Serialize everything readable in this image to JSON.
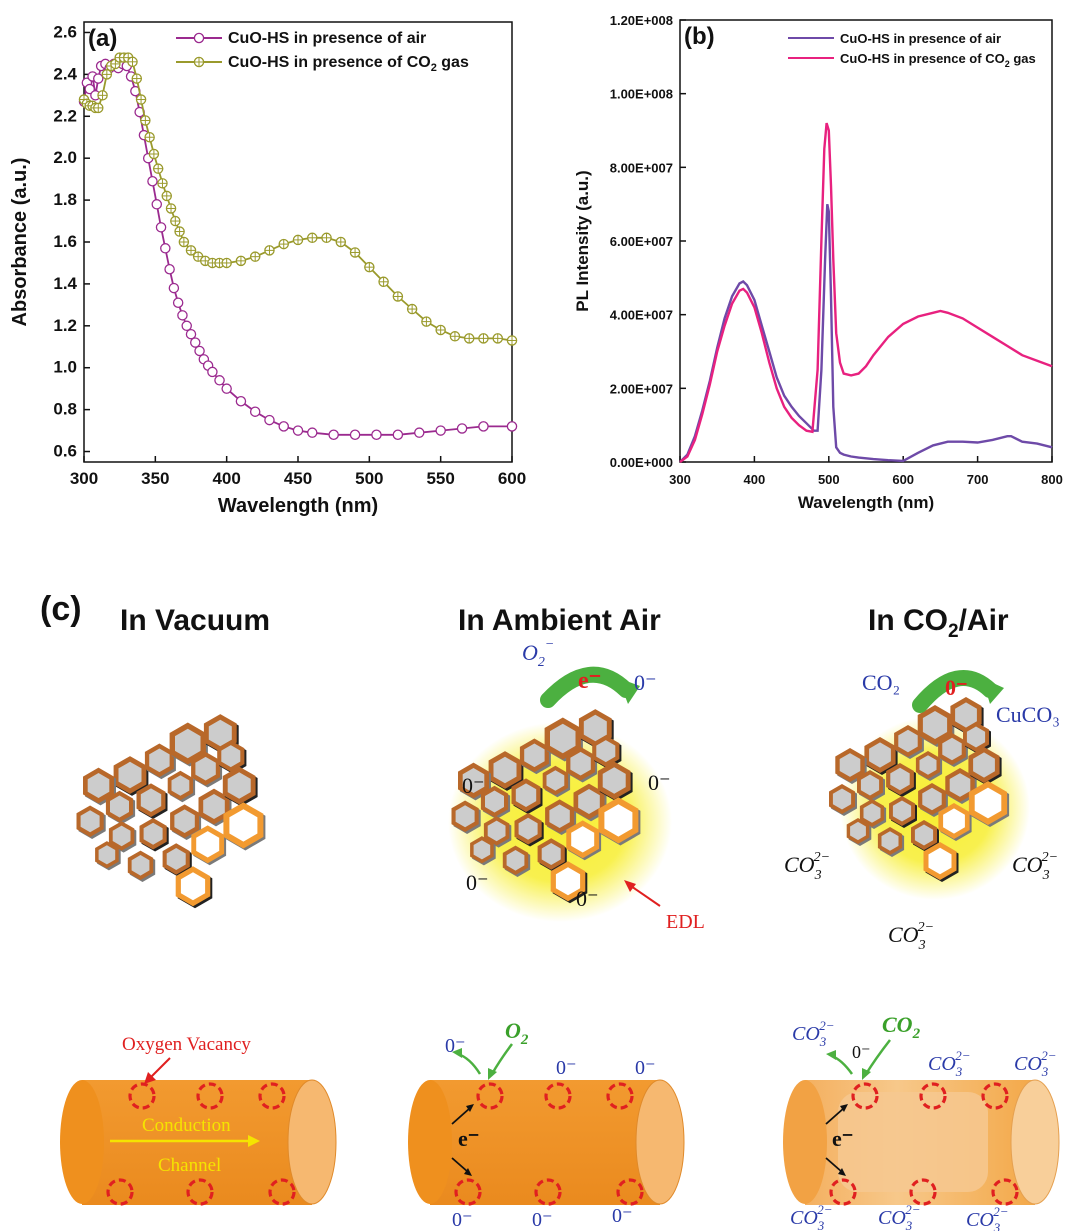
{
  "colors": {
    "purple": "#9b2a8f",
    "olive": "#9a9a2c",
    "violet": "#6e4aa8",
    "pink": "#e8217f",
    "orange": "#f0932a",
    "orange_dark": "#b8682a",
    "red": "#e02020",
    "blue": "#2a3aa8",
    "green": "#3aa02a",
    "yellow": "#f5e400"
  },
  "chart_data": [
    {
      "panel_label": "(a)",
      "type": "line",
      "xlabel": "Wavelength (nm)",
      "ylabel": "Absorbance (a.u.)",
      "xlim": [
        300,
        600
      ],
      "ylim": [
        0.55,
        2.65
      ],
      "x_ticks": [
        "300",
        "350",
        "400",
        "450",
        "500",
        "550",
        "600"
      ],
      "y_ticks": [
        "0.6",
        "0.8",
        "1.0",
        "1.2",
        "1.4",
        "1.6",
        "1.8",
        "2.0",
        "2.2",
        "2.4",
        "2.6"
      ],
      "legend": "top-right",
      "series": [
        {
          "name": "CuO-HS in presence of air",
          "marker": "open-circle",
          "color": "#9b2a8f",
          "x": [
            300,
            302,
            304,
            306,
            308,
            310,
            312,
            315,
            318,
            321,
            324,
            327,
            330,
            333,
            336,
            339,
            342,
            345,
            348,
            351,
            354,
            357,
            360,
            363,
            366,
            369,
            372,
            375,
            378,
            381,
            384,
            387,
            390,
            395,
            400,
            410,
            420,
            430,
            440,
            450,
            460,
            475,
            490,
            505,
            520,
            535,
            550,
            565,
            580,
            600
          ],
          "y": [
            2.27,
            2.36,
            2.33,
            2.39,
            2.3,
            2.38,
            2.44,
            2.45,
            2.43,
            2.45,
            2.43,
            2.45,
            2.44,
            2.39,
            2.32,
            2.22,
            2.11,
            2.0,
            1.89,
            1.78,
            1.67,
            1.57,
            1.47,
            1.38,
            1.31,
            1.25,
            1.2,
            1.16,
            1.12,
            1.08,
            1.04,
            1.01,
            0.98,
            0.94,
            0.9,
            0.84,
            0.79,
            0.75,
            0.72,
            0.7,
            0.69,
            0.68,
            0.68,
            0.68,
            0.68,
            0.69,
            0.7,
            0.71,
            0.72,
            0.72
          ]
        },
        {
          "name": "CuO-HS in presence of CO2 gas",
          "marker": "circle-plus",
          "color": "#9a9a2c",
          "x": [
            300,
            302,
            304,
            306,
            308,
            310,
            313,
            316,
            319,
            322,
            325,
            328,
            331,
            334,
            337,
            340,
            343,
            346,
            349,
            352,
            355,
            358,
            361,
            364,
            367,
            370,
            375,
            380,
            385,
            390,
            395,
            400,
            410,
            420,
            430,
            440,
            450,
            460,
            470,
            480,
            490,
            500,
            510,
            520,
            530,
            540,
            550,
            560,
            570,
            580,
            590,
            600
          ],
          "y": [
            2.28,
            2.26,
            2.25,
            2.25,
            2.24,
            2.24,
            2.3,
            2.4,
            2.44,
            2.45,
            2.48,
            2.48,
            2.48,
            2.46,
            2.38,
            2.28,
            2.18,
            2.1,
            2.02,
            1.95,
            1.88,
            1.82,
            1.76,
            1.7,
            1.65,
            1.6,
            1.56,
            1.53,
            1.51,
            1.5,
            1.5,
            1.5,
            1.51,
            1.53,
            1.56,
            1.59,
            1.61,
            1.62,
            1.62,
            1.6,
            1.55,
            1.48,
            1.41,
            1.34,
            1.28,
            1.22,
            1.18,
            1.15,
            1.14,
            1.14,
            1.14,
            1.13
          ]
        }
      ]
    },
    {
      "panel_label": "(b)",
      "type": "line",
      "xlabel": "Wavelength (nm)",
      "ylabel": "PL Intensity (a.u.)",
      "xlim": [
        300,
        800
      ],
      "ylim": [
        0,
        120000000
      ],
      "x_ticks": [
        "300",
        "400",
        "500",
        "600",
        "700",
        "800"
      ],
      "y_ticks": [
        "0.00E+000",
        "2.00E+007",
        "4.00E+007",
        "6.00E+007",
        "8.00E+007",
        "1.00E+008",
        "1.20E+008"
      ],
      "legend": "top-right",
      "series": [
        {
          "name": "CuO-HS in presence of air",
          "color": "#6e4aa8",
          "x": [
            300,
            310,
            320,
            330,
            340,
            350,
            360,
            370,
            380,
            385,
            390,
            400,
            410,
            420,
            430,
            440,
            450,
            460,
            470,
            480,
            485,
            490,
            495,
            498,
            500,
            503,
            506,
            510,
            515,
            520,
            530,
            540,
            550,
            560,
            580,
            600,
            620,
            640,
            660,
            680,
            700,
            720,
            740,
            745,
            760,
            780,
            800
          ],
          "y": [
            0,
            2000000,
            7000000,
            14000000,
            22000000,
            31000000,
            39000000,
            45000000,
            48500000,
            49000000,
            48000000,
            44000000,
            37000000,
            30000000,
            23000000,
            18000000,
            15000000,
            12500000,
            10500000,
            8500000,
            8500000,
            25000000,
            55000000,
            70000000,
            68000000,
            45000000,
            15000000,
            4000000,
            2500000,
            2000000,
            1500000,
            1200000,
            1000000,
            800000,
            500000,
            300000,
            2500000,
            4500000,
            5500000,
            5500000,
            5300000,
            6000000,
            7000000,
            7000000,
            5500000,
            5000000,
            4000000
          ]
        },
        {
          "name": "CuO-HS in presence of CO2 gas",
          "color": "#e8217f",
          "x": [
            300,
            310,
            320,
            330,
            340,
            350,
            360,
            370,
            380,
            385,
            390,
            400,
            410,
            420,
            430,
            440,
            450,
            460,
            470,
            478,
            485,
            490,
            494,
            497,
            500,
            503,
            506,
            510,
            515,
            520,
            530,
            540,
            550,
            560,
            580,
            600,
            620,
            640,
            650,
            660,
            680,
            700,
            720,
            740,
            760,
            780,
            800
          ],
          "y": [
            0,
            1500000,
            6000000,
            13000000,
            21000000,
            30000000,
            37000000,
            43000000,
            46500000,
            47000000,
            46000000,
            42000000,
            35000000,
            27000000,
            20000000,
            15000000,
            12000000,
            10000000,
            8500000,
            8200000,
            25000000,
            60000000,
            85000000,
            92000000,
            90000000,
            75000000,
            55000000,
            35000000,
            27000000,
            24000000,
            23500000,
            24000000,
            26000000,
            29000000,
            34000000,
            37500000,
            39500000,
            40500000,
            41000000,
            40500000,
            39000000,
            36500000,
            34000000,
            31500000,
            29000000,
            27500000,
            26000000
          ]
        }
      ]
    }
  ],
  "panel_c": {
    "label": "(c)",
    "titles": {
      "vacuum": "In Vacuum",
      "air": "In Ambient Air",
      "co2_prefix": "In CO",
      "co2_sub": "2",
      "co2_suffix": "/Air"
    },
    "air_cluster": {
      "o2_base": "O",
      "o2_sub": "2",
      "o2_sup": "−",
      "electron": "e⁻",
      "o_minus": "0⁻",
      "edl": "EDL"
    },
    "co2_cluster": {
      "co2": "CO₂",
      "o_minus": "0⁻",
      "cuco3": "CuCO₃",
      "co3_base": "CO",
      "co3_sub": "3",
      "co3_sup": "2−"
    },
    "vacuum_tube": {
      "oxygen_vacancy": "Oxygen Vacancy",
      "conduction": "Conduction",
      "channel": "Channel"
    },
    "air_tube": {
      "o2_base": "O",
      "o2_sub": "2",
      "o_minus": "0⁻",
      "electron": "e⁻"
    },
    "co2_tube": {
      "co2_base": "CO",
      "co2_sub": "2",
      "o_minus": "0⁻",
      "electron": "e⁻",
      "co3_base": "CO",
      "co3_sub": "3",
      "co3_sup": "2−"
    }
  }
}
